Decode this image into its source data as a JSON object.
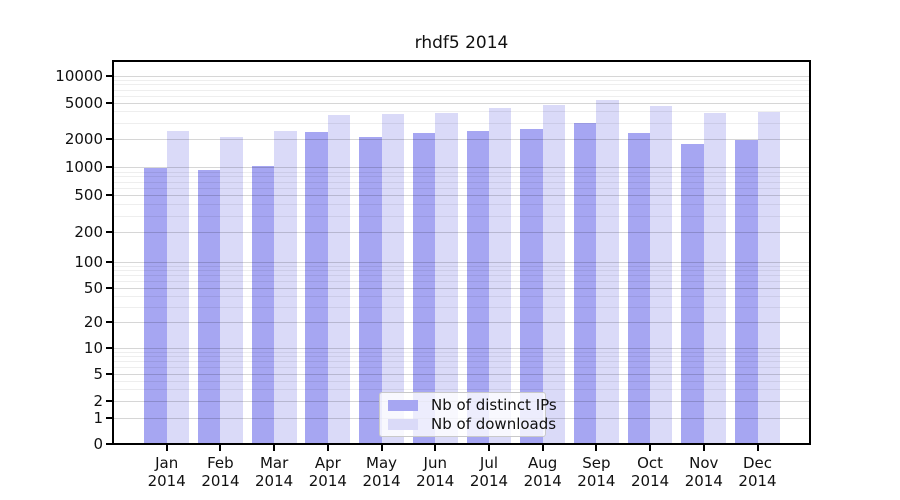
{
  "title": "rhdf5 2014",
  "chart_data": {
    "type": "bar",
    "title": "rhdf5 2014",
    "categories": [
      "Jan",
      "Feb",
      "Mar",
      "Apr",
      "May",
      "Jun",
      "Jul",
      "Aug",
      "Sep",
      "Oct",
      "Nov",
      "Dec"
    ],
    "year_label": "2014",
    "series": [
      {
        "name": "Nb of distinct IPs",
        "color": "#a6a6f2",
        "values": [
          990,
          930,
          1020,
          2350,
          2070,
          2330,
          2410,
          2570,
          2950,
          2310,
          1750,
          1930
        ]
      },
      {
        "name": "Nb of downloads",
        "color": "#dadaf8",
        "values": [
          2450,
          2100,
          2430,
          3650,
          3780,
          3800,
          4330,
          4680,
          5400,
          4590,
          3820,
          3980
        ]
      }
    ],
    "y_axis": {
      "scale": "symlog",
      "ticks": [
        0,
        1,
        2,
        5,
        10,
        20,
        50,
        100,
        200,
        500,
        1000,
        2000,
        5000,
        10000
      ],
      "minor_gridlines": [
        3,
        4,
        6,
        7,
        8,
        9,
        30,
        40,
        60,
        70,
        80,
        90,
        300,
        400,
        600,
        700,
        800,
        900,
        3000,
        4000,
        6000,
        7000,
        8000,
        9000
      ],
      "range": [
        0,
        13000
      ]
    },
    "x_axis": {
      "tick_labels": [
        "Jan 2014",
        "Feb 2014",
        "Mar 2014",
        "Apr 2014",
        "May 2014",
        "Jun 2014",
        "Jul 2014",
        "Aug 2014",
        "Sep 2014",
        "Oct 2014",
        "Nov 2014",
        "Dec 2014"
      ]
    },
    "legend": {
      "position": "lower center",
      "items": [
        {
          "label": "Nb of distinct IPs",
          "color": "#a6a6f2"
        },
        {
          "label": "Nb of downloads",
          "color": "#dadaf8"
        }
      ]
    },
    "grid": {
      "horizontal": true,
      "minor": true,
      "grid_on_top": true
    }
  }
}
